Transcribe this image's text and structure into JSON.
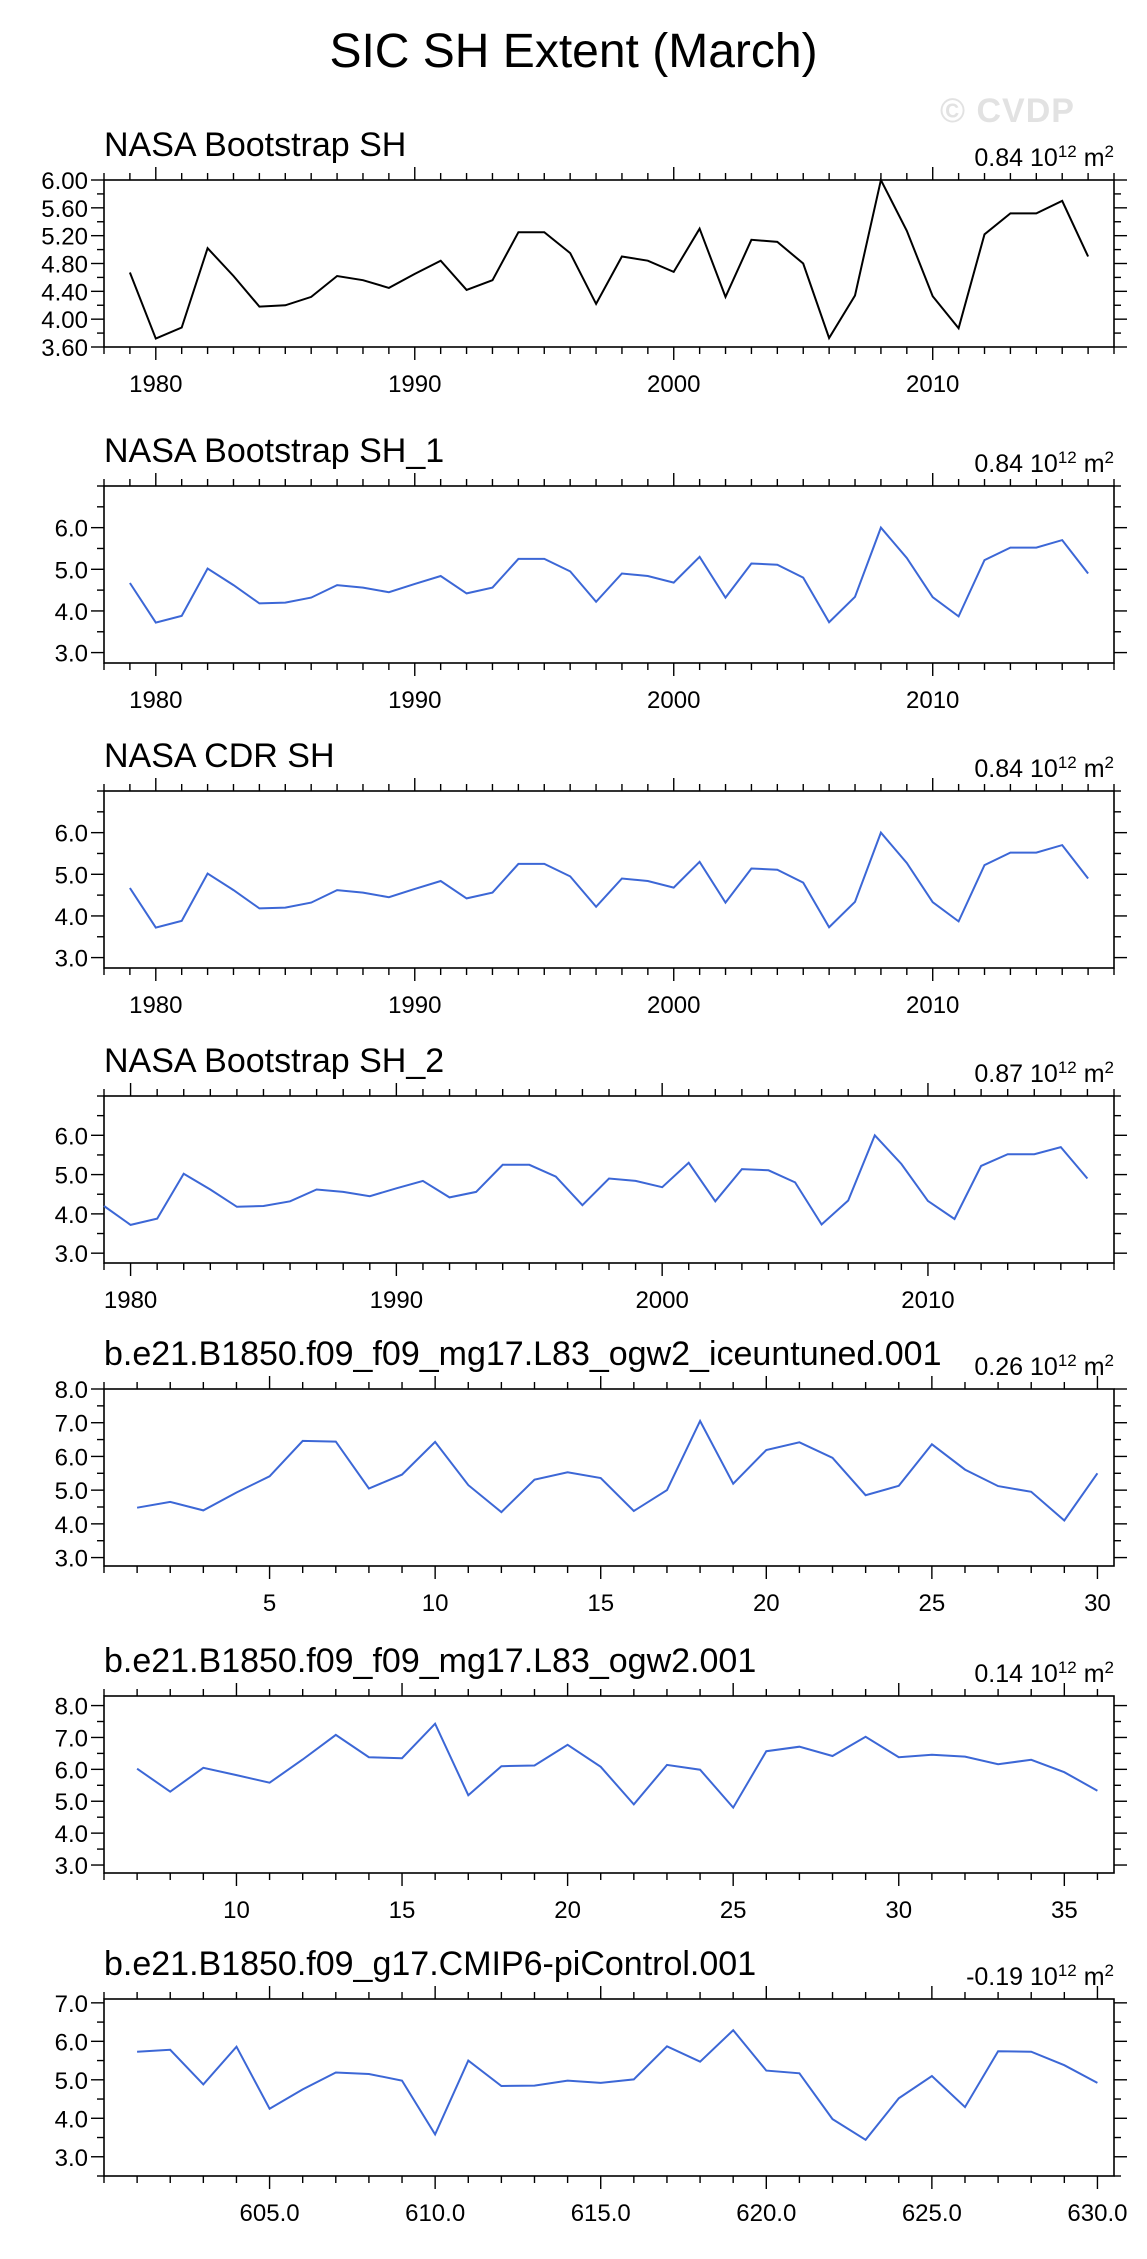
{
  "page": {
    "title": "SIC SH Extent (March)",
    "watermark": "© CVDP",
    "colors": {
      "obs_line": "#000000",
      "model_line": "#3c67d6",
      "frame": "#000000",
      "watermark": "#e2e2e2"
    }
  },
  "chart_data": [
    {
      "type": "line",
      "title": "NASA Bootstrap SH",
      "stat_value": "0.84",
      "stat_unit_base": "10",
      "stat_unit_exp": "12",
      "stat_unit_suffix": " m",
      "stat_unit_sup": "2",
      "line_color": "#000000",
      "xlim": [
        1978,
        2017
      ],
      "ylim": [
        3.6,
        6.0
      ],
      "yticks": [
        3.6,
        4.0,
        4.4,
        4.8,
        5.2,
        5.6,
        6.0
      ],
      "ytick_labels": [
        "3.60",
        "4.00",
        "4.40",
        "4.80",
        "5.20",
        "5.60",
        "6.00"
      ],
      "y_minor_step": 0.2,
      "xticks": [
        1980,
        1990,
        2000,
        2010
      ],
      "xtick_labels": [
        "1980",
        "1990",
        "2000",
        "2010"
      ],
      "x_minor_step": 1,
      "x": [
        1979,
        1980,
        1981,
        1982,
        1983,
        1984,
        1985,
        1986,
        1987,
        1988,
        1989,
        1990,
        1991,
        1992,
        1993,
        1994,
        1995,
        1996,
        1997,
        1998,
        1999,
        2000,
        2001,
        2002,
        2003,
        2004,
        2005,
        2006,
        2007,
        2008,
        2009,
        2010,
        2011,
        2012,
        2013,
        2014,
        2015,
        2016
      ],
      "values": [
        4.67,
        3.72,
        3.88,
        5.02,
        4.62,
        4.18,
        4.2,
        4.32,
        4.62,
        4.56,
        4.45,
        4.65,
        4.84,
        4.42,
        4.56,
        5.25,
        5.25,
        4.95,
        4.22,
        4.9,
        4.84,
        4.68,
        5.3,
        4.32,
        5.14,
        5.11,
        4.8,
        3.73,
        4.34,
        6.0,
        5.27,
        4.33,
        3.87,
        5.22,
        5.52,
        5.52,
        5.7,
        4.9
      ]
    },
    {
      "type": "line",
      "title": "NASA Bootstrap SH_1",
      "stat_value": "0.84",
      "stat_unit_base": "10",
      "stat_unit_exp": "12",
      "stat_unit_suffix": " m",
      "stat_unit_sup": "2",
      "line_color": "#3c67d6",
      "xlim": [
        1978,
        2017
      ],
      "ylim": [
        2.75,
        7.0
      ],
      "yticks": [
        3.0,
        4.0,
        5.0,
        6.0
      ],
      "ytick_labels": [
        "3.0",
        "4.0",
        "5.0",
        "6.0"
      ],
      "y_minor_step": 0.5,
      "xticks": [
        1980,
        1990,
        2000,
        2010
      ],
      "xtick_labels": [
        "1980",
        "1990",
        "2000",
        "2010"
      ],
      "x_minor_step": 1,
      "x": [
        1979,
        1980,
        1981,
        1982,
        1983,
        1984,
        1985,
        1986,
        1987,
        1988,
        1989,
        1990,
        1991,
        1992,
        1993,
        1994,
        1995,
        1996,
        1997,
        1998,
        1999,
        2000,
        2001,
        2002,
        2003,
        2004,
        2005,
        2006,
        2007,
        2008,
        2009,
        2010,
        2011,
        2012,
        2013,
        2014,
        2015,
        2016
      ],
      "values": [
        4.67,
        3.72,
        3.88,
        5.02,
        4.62,
        4.18,
        4.2,
        4.32,
        4.62,
        4.56,
        4.45,
        4.65,
        4.84,
        4.42,
        4.56,
        5.25,
        5.25,
        4.95,
        4.22,
        4.9,
        4.84,
        4.68,
        5.3,
        4.32,
        5.14,
        5.11,
        4.8,
        3.73,
        4.34,
        6.0,
        5.27,
        4.33,
        3.87,
        5.22,
        5.52,
        5.52,
        5.7,
        4.9
      ]
    },
    {
      "type": "line",
      "title": "NASA CDR SH",
      "stat_value": "0.84",
      "stat_unit_base": "10",
      "stat_unit_exp": "12",
      "stat_unit_suffix": " m",
      "stat_unit_sup": "2",
      "line_color": "#3c67d6",
      "xlim": [
        1978,
        2017
      ],
      "ylim": [
        2.75,
        7.0
      ],
      "yticks": [
        3.0,
        4.0,
        5.0,
        6.0
      ],
      "ytick_labels": [
        "3.0",
        "4.0",
        "5.0",
        "6.0"
      ],
      "y_minor_step": 0.5,
      "xticks": [
        1980,
        1990,
        2000,
        2010
      ],
      "xtick_labels": [
        "1980",
        "1990",
        "2000",
        "2010"
      ],
      "x_minor_step": 1,
      "x": [
        1979,
        1980,
        1981,
        1982,
        1983,
        1984,
        1985,
        1986,
        1987,
        1988,
        1989,
        1990,
        1991,
        1992,
        1993,
        1994,
        1995,
        1996,
        1997,
        1998,
        1999,
        2000,
        2001,
        2002,
        2003,
        2004,
        2005,
        2006,
        2007,
        2008,
        2009,
        2010,
        2011,
        2012,
        2013,
        2014,
        2015,
        2016
      ],
      "values": [
        4.67,
        3.72,
        3.88,
        5.02,
        4.62,
        4.18,
        4.2,
        4.32,
        4.62,
        4.56,
        4.45,
        4.65,
        4.84,
        4.42,
        4.56,
        5.25,
        5.25,
        4.95,
        4.22,
        4.9,
        4.84,
        4.68,
        5.3,
        4.32,
        5.14,
        5.11,
        4.8,
        3.73,
        4.34,
        6.0,
        5.27,
        4.33,
        3.87,
        5.22,
        5.52,
        5.52,
        5.7,
        4.9
      ]
    },
    {
      "type": "line",
      "title": "NASA Bootstrap SH_2",
      "stat_value": "0.87",
      "stat_unit_base": "10",
      "stat_unit_exp": "12",
      "stat_unit_suffix": " m",
      "stat_unit_sup": "2",
      "line_color": "#3c67d6",
      "xlim": [
        1979,
        2017
      ],
      "ylim": [
        2.75,
        7.0
      ],
      "yticks": [
        3.0,
        4.0,
        5.0,
        6.0
      ],
      "ytick_labels": [
        "3.0",
        "4.0",
        "5.0",
        "6.0"
      ],
      "y_minor_step": 0.5,
      "xticks": [
        1980,
        1990,
        2000,
        2010
      ],
      "xtick_labels": [
        "1980",
        "1990",
        "2000",
        "2010"
      ],
      "x_minor_step": 1,
      "x": [
        1979,
        1980,
        1981,
        1982,
        1983,
        1984,
        1985,
        1986,
        1987,
        1988,
        1989,
        1990,
        1991,
        1992,
        1993,
        1994,
        1995,
        1996,
        1997,
        1998,
        1999,
        2000,
        2001,
        2002,
        2003,
        2004,
        2005,
        2006,
        2007,
        2008,
        2009,
        2010,
        2011,
        2012,
        2013,
        2014,
        2015,
        2016
      ],
      "values": [
        4.2,
        3.72,
        3.88,
        5.02,
        4.62,
        4.18,
        4.2,
        4.32,
        4.62,
        4.56,
        4.45,
        4.65,
        4.84,
        4.42,
        4.56,
        5.25,
        5.25,
        4.95,
        4.22,
        4.9,
        4.84,
        4.68,
        5.3,
        4.32,
        5.14,
        5.11,
        4.8,
        3.73,
        4.34,
        6.0,
        5.27,
        4.33,
        3.87,
        5.22,
        5.52,
        5.52,
        5.7,
        4.9
      ]
    },
    {
      "type": "line",
      "title": "b.e21.B1850.f09_f09_mg17.L83_ogw2_iceuntuned.001",
      "stat_value": "0.26",
      "stat_unit_base": "10",
      "stat_unit_exp": "12",
      "stat_unit_suffix": " m",
      "stat_unit_sup": "2",
      "line_color": "#3c67d6",
      "xlim": [
        0,
        30.5
      ],
      "ylim": [
        2.75,
        8.0
      ],
      "yticks": [
        3.0,
        4.0,
        5.0,
        6.0,
        7.0,
        8.0
      ],
      "ytick_labels": [
        "3.0",
        "4.0",
        "5.0",
        "6.0",
        "7.0",
        "8.0"
      ],
      "y_minor_step": 0.5,
      "xticks": [
        5,
        10,
        15,
        20,
        25,
        30
      ],
      "xtick_labels": [
        "5",
        "10",
        "15",
        "20",
        "25",
        "30"
      ],
      "x_minor_step": 1,
      "x": [
        1,
        2,
        3,
        4,
        5,
        6,
        7,
        8,
        9,
        10,
        11,
        12,
        13,
        14,
        15,
        16,
        17,
        18,
        19,
        20,
        21,
        22,
        23,
        24,
        25,
        26,
        27,
        28,
        29,
        30
      ],
      "values": [
        4.48,
        4.65,
        4.4,
        4.93,
        5.41,
        6.46,
        6.44,
        5.05,
        5.46,
        6.43,
        5.15,
        4.35,
        5.31,
        5.53,
        5.36,
        4.38,
        5.0,
        7.05,
        5.19,
        6.19,
        6.42,
        5.96,
        4.85,
        5.13,
        6.36,
        5.61,
        5.12,
        4.95,
        4.1,
        5.5
      ]
    },
    {
      "type": "line",
      "title": "b.e21.B1850.f09_f09_mg17.L83_ogw2.001",
      "stat_value": "0.14",
      "stat_unit_base": "10",
      "stat_unit_exp": "12",
      "stat_unit_suffix": " m",
      "stat_unit_sup": "2",
      "line_color": "#3c67d6",
      "xlim": [
        6,
        36.5
      ],
      "ylim": [
        2.75,
        8.3
      ],
      "yticks": [
        3.0,
        4.0,
        5.0,
        6.0,
        7.0,
        8.0
      ],
      "ytick_labels": [
        "3.0",
        "4.0",
        "5.0",
        "6.0",
        "7.0",
        "8.0"
      ],
      "y_minor_step": 0.5,
      "xticks": [
        10,
        15,
        20,
        25,
        30,
        35
      ],
      "xtick_labels": [
        "10",
        "15",
        "20",
        "25",
        "30",
        "35"
      ],
      "x_minor_step": 1,
      "x": [
        7,
        8,
        9,
        10,
        11,
        12,
        13,
        14,
        15,
        16,
        17,
        18,
        19,
        20,
        21,
        22,
        23,
        24,
        25,
        26,
        27,
        28,
        29,
        30,
        31,
        32,
        33,
        34,
        35,
        36
      ],
      "values": [
        6.02,
        5.3,
        6.05,
        5.82,
        5.58,
        6.31,
        7.08,
        6.38,
        6.35,
        7.43,
        5.19,
        6.1,
        6.12,
        6.77,
        6.08,
        4.9,
        6.14,
        5.99,
        4.8,
        6.57,
        6.71,
        6.42,
        7.02,
        6.38,
        6.46,
        6.4,
        6.16,
        6.3,
        5.91,
        5.33
      ]
    },
    {
      "type": "line",
      "title": "b.e21.B1850.f09_g17.CMIP6-piControl.001",
      "stat_value": "-0.19",
      "stat_unit_base": "10",
      "stat_unit_exp": "12",
      "stat_unit_suffix": " m",
      "stat_unit_sup": "2",
      "line_color": "#3c67d6",
      "xlim": [
        600,
        630.5
      ],
      "ylim": [
        2.5,
        7.1
      ],
      "yticks": [
        3.0,
        4.0,
        5.0,
        6.0,
        7.0
      ],
      "ytick_labels": [
        "3.0",
        "4.0",
        "5.0",
        "6.0",
        "7.0"
      ],
      "y_minor_step": 0.5,
      "xticks": [
        605,
        610,
        615,
        620,
        625,
        630
      ],
      "xtick_labels": [
        "605.0",
        "610.0",
        "615.0",
        "620.0",
        "625.0",
        "630.0"
      ],
      "x_minor_step": 1,
      "x": [
        601,
        602,
        603,
        604,
        605,
        606,
        607,
        608,
        609,
        610,
        611,
        612,
        613,
        614,
        615,
        616,
        617,
        618,
        619,
        620,
        621,
        622,
        623,
        624,
        625,
        626,
        627,
        628,
        629,
        630
      ],
      "values": [
        5.73,
        5.78,
        4.88,
        5.86,
        4.25,
        4.75,
        5.19,
        5.15,
        4.98,
        3.58,
        5.5,
        4.84,
        4.85,
        4.98,
        4.92,
        5.01,
        5.87,
        5.47,
        6.29,
        5.24,
        5.17,
        3.98,
        3.44,
        4.52,
        5.1,
        4.29,
        5.74,
        5.73,
        5.38,
        4.92
      ]
    }
  ]
}
